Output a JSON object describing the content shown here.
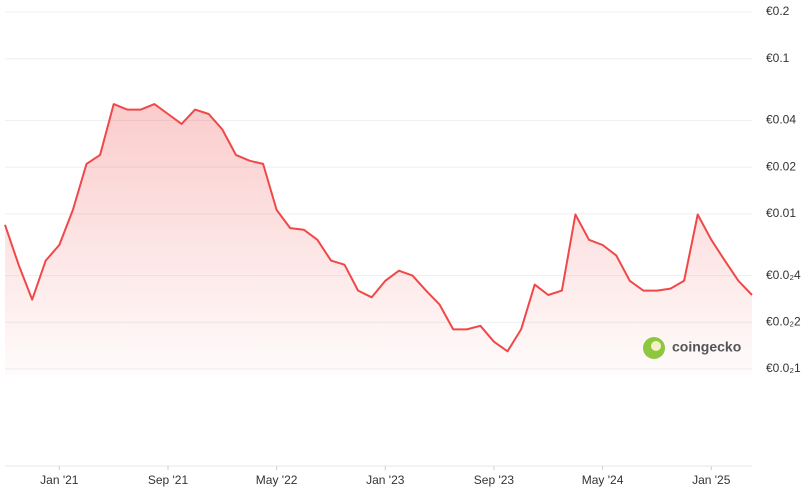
{
  "chart_data": {
    "type": "line",
    "log_scale": true,
    "grid": true,
    "watermark": "coingecko",
    "x": [
      "2020-09",
      "2020-10",
      "2020-11",
      "2020-12",
      "2021-01",
      "2021-02",
      "2021-03",
      "2021-04",
      "2021-05",
      "2021-06",
      "2021-07",
      "2021-08",
      "2021-09",
      "2021-10",
      "2021-11",
      "2021-12",
      "2022-01",
      "2022-02",
      "2022-03",
      "2022-04",
      "2022-05",
      "2022-06",
      "2022-07",
      "2022-08",
      "2022-09",
      "2022-10",
      "2022-11",
      "2022-12",
      "2023-01",
      "2023-02",
      "2023-03",
      "2023-04",
      "2023-05",
      "2023-06",
      "2023-07",
      "2023-08",
      "2023-09",
      "2023-10",
      "2023-11",
      "2023-12",
      "2024-01",
      "2024-02",
      "2024-03",
      "2024-04",
      "2024-05",
      "2024-06",
      "2024-07",
      "2024-08",
      "2024-09",
      "2024-10",
      "2024-11",
      "2024-12",
      "2025-01",
      "2025-02",
      "2025-03",
      "2025-04"
    ],
    "series": [
      {
        "color": "#f04848",
        "values": [
          0.0085,
          0.0047,
          0.0028,
          0.005,
          0.0063,
          0.0106,
          0.021,
          0.024,
          0.051,
          0.047,
          0.047,
          0.051,
          0.044,
          0.038,
          0.047,
          0.044,
          0.035,
          0.024,
          0.022,
          0.021,
          0.0106,
          0.0081,
          0.0079,
          0.0068,
          0.005,
          0.0047,
          0.0032,
          0.0029,
          0.0037,
          0.0043,
          0.004,
          0.0032,
          0.0026,
          0.0018,
          0.0018,
          0.0019,
          0.0015,
          0.0013,
          0.0018,
          0.0035,
          0.003,
          0.0032,
          0.0099,
          0.0068,
          0.0063,
          0.0054,
          0.0037,
          0.0032,
          0.0032,
          0.0033,
          0.0037,
          0.0099,
          0.0068,
          0.005,
          0.0037,
          0.003
        ]
      }
    ],
    "xlim": [
      "2020-09",
      "2025-04"
    ],
    "xticks": [
      {
        "value": "2021-01",
        "label": "Jan '21"
      },
      {
        "value": "2021-09",
        "label": "Sep '21"
      },
      {
        "value": "2022-05",
        "label": "May '22"
      },
      {
        "value": "2023-01",
        "label": "Jan '23"
      },
      {
        "value": "2023-09",
        "label": "Sep '23"
      },
      {
        "value": "2024-05",
        "label": "May '24"
      },
      {
        "value": "2025-01",
        "label": "Jan '25"
      }
    ],
    "ylim": [
      0.001,
      0.2
    ],
    "yticks": [
      {
        "value": 0.2,
        "label": "€0.2"
      },
      {
        "value": 0.1,
        "label": "€0.1"
      },
      {
        "value": 0.04,
        "label": "€0.04"
      },
      {
        "value": 0.02,
        "label": "€0.02"
      },
      {
        "value": 0.01,
        "label": "€0.01"
      },
      {
        "value": 0.004,
        "label": "€0.0₂4"
      },
      {
        "value": 0.002,
        "label": "€0.0₂2"
      },
      {
        "value": 0.001,
        "label": "€0.0₂1"
      }
    ]
  }
}
